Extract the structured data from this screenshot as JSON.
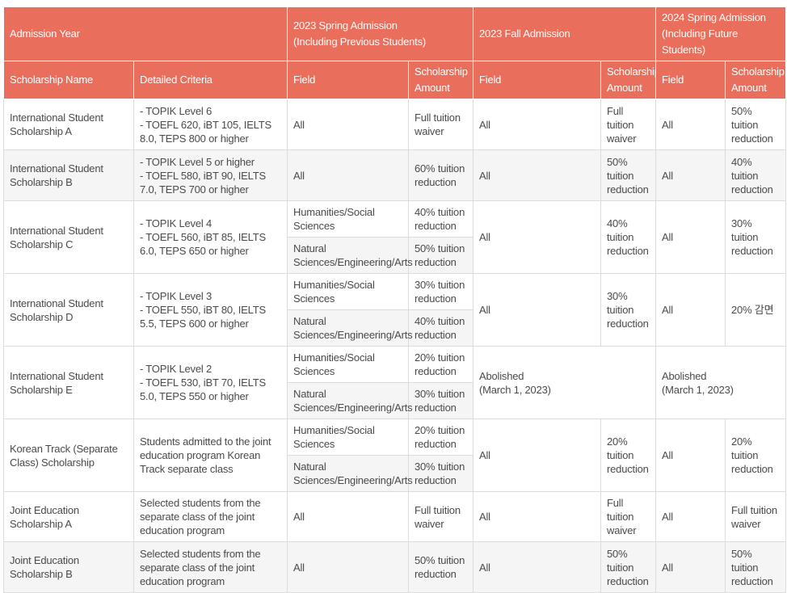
{
  "header": {
    "admission_year": "Admission Year",
    "groups": [
      "2023 Spring Admission\n(Including Previous Students)",
      "2023 Fall Admission",
      "2024 Spring Admission\n(Including Future Students)"
    ],
    "scholarship_name": "Scholarship Name",
    "detailed_criteria": "Detailed Criteria",
    "field": "Field",
    "scholarship_amount": "Scholarship Amount"
  },
  "rows": [
    {
      "name": "International Student Scholarship A",
      "criteria": "- TOPIK Level 6\n- TOEFL 620, iBT 105, IELTS 8.0, TEPS 800 or higher",
      "spring2023": {
        "field": "All",
        "amount": "Full tuition waiver"
      },
      "fall2023": {
        "field": "All",
        "amount": "Full tuition waiver"
      },
      "spring2024": {
        "field": "All",
        "amount": "50% tuition reduction"
      }
    },
    {
      "name": "International Student Scholarship B",
      "criteria": "- TOPIK Level 5 or higher\n- TOEFL 580, iBT 90, IELTS 7.0, TEPS 700 or higher",
      "spring2023": {
        "field": "All",
        "amount": "60% tuition reduction"
      },
      "fall2023": {
        "field": "All",
        "amount": "50% tuition reduction"
      },
      "spring2024": {
        "field": "All",
        "amount": "40% tuition reduction"
      }
    },
    {
      "name": "International Student Scholarship C",
      "criteria": "- TOPIK Level 4\n- TOEFL 560, iBT 85, IELTS 6.0, TEPS 650 or higher",
      "spring2023": {
        "sub": [
          {
            "field": "Humanities/Social Sciences",
            "amount": "40% tuition reduction"
          },
          {
            "field": "Natural Sciences/Engineering/Arts",
            "amount": "50% tuition reduction"
          }
        ]
      },
      "fall2023": {
        "field": "All",
        "amount": "40% tuition reduction"
      },
      "spring2024": {
        "field": "All",
        "amount": "30% tuition reduction"
      }
    },
    {
      "name": "International Student Scholarship D",
      "criteria": "- TOPIK Level 3\n- TOEFL 550, iBT 80, IELTS 5.5, TEPS 600 or higher",
      "spring2023": {
        "sub": [
          {
            "field": "Humanities/Social Sciences",
            "amount": "30% tuition reduction"
          },
          {
            "field": "Natural Sciences/Engineering/Arts",
            "amount": "40% tuition reduction"
          }
        ]
      },
      "fall2023": {
        "field": "All",
        "amount": "30% tuition reduction"
      },
      "spring2024": {
        "field": "All",
        "amount": "20% 감면"
      }
    },
    {
      "name": "International Student Scholarship E",
      "criteria": "- TOPIK Level 2\n- TOEFL 530, iBT 70, IELTS 5.0, TEPS 550 or higher",
      "spring2023": {
        "sub": [
          {
            "field": "Humanities/Social Sciences",
            "amount": "20% tuition reduction"
          },
          {
            "field": "Natural Sciences/Engineering/Arts",
            "amount": "30% tuition reduction"
          }
        ]
      },
      "fall2023": {
        "merged": "Abolished\n(March 1, 2023)"
      },
      "spring2024": {
        "merged": "Abolished\n(March 1, 2023)"
      }
    },
    {
      "name": "Korean Track (Separate Class) Scholarship",
      "criteria": "Students admitted to the joint education program Korean Track separate class",
      "spring2023": {
        "sub": [
          {
            "field": "Humanities/Social Sciences",
            "amount": "20% tuition reduction"
          },
          {
            "field": "Natural Sciences/Engineering/Arts",
            "amount": "30% tuition reduction"
          }
        ]
      },
      "fall2023": {
        "field": "All",
        "amount": "20% tuition reduction"
      },
      "spring2024": {
        "field": "All",
        "amount": "20% tuition reduction"
      }
    },
    {
      "name": "Joint Education Scholarship A",
      "criteria": "Selected students from the separate class of the joint education program",
      "spring2023": {
        "field": "All",
        "amount": "Full tuition waiver"
      },
      "fall2023": {
        "field": "All",
        "amount": "Full tuition waiver"
      },
      "spring2024": {
        "field": "All",
        "amount": "Full tuition waiver"
      }
    },
    {
      "name": "Joint Education Scholarship B",
      "criteria": "Selected students from the separate class of the joint education program",
      "spring2023": {
        "field": "All",
        "amount": "50% tuition reduction"
      },
      "fall2023": {
        "field": "All",
        "amount": "50% tuition reduction"
      },
      "spring2024": {
        "field": "All",
        "amount": "50% tuition reduction"
      }
    }
  ],
  "colors": {
    "header_bg": "#E96E5C",
    "header_text": "#FFFFFF",
    "stripe_bg": "#F5F5F5",
    "border": "#DCDCDC",
    "body_text": "#4A4A4A"
  }
}
